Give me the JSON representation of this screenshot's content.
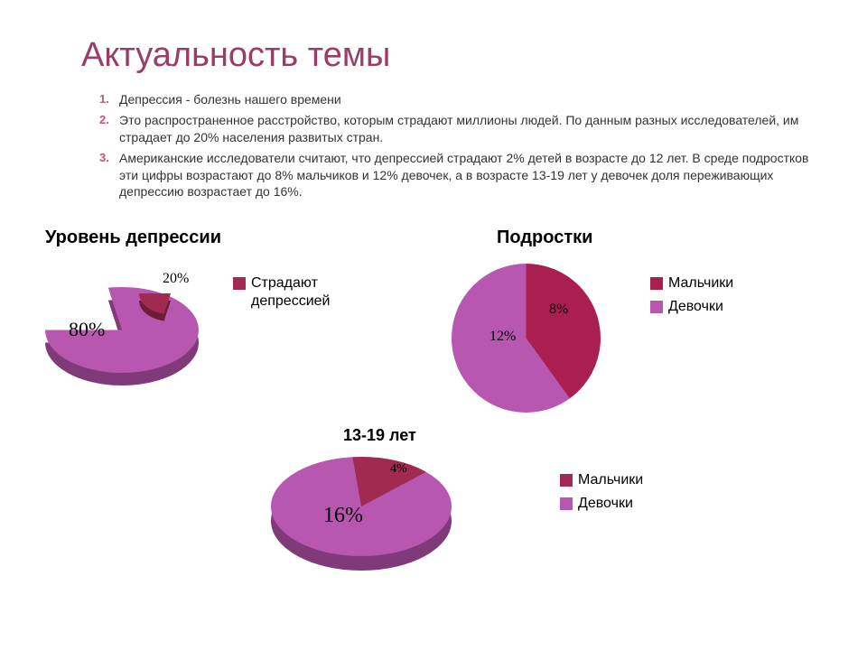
{
  "title": {
    "text": "Актуальность темы",
    "color": "#9a3c68",
    "fontsize": 38
  },
  "list": {
    "marker_color": "#c94f7c",
    "items": [
      "Депрессия - болезнь нашего времени",
      "Это распространенное расстройство, которым страдают миллионы людей. По данным разных исследователей, им страдает до 20% населения развитых стран.",
      "Американские исследователи считают, что депрессией страдают 2% детей  в возрасте до 12 лет. В среде подростков эти цифры возрастают до 8% мальчиков и 12% девочек, а в возрасте 13-19 лет у девочек доля переживающих депрессию возрастает до 16%."
    ]
  },
  "chart1": {
    "type": "pie",
    "title": "Уровень депрессии",
    "title_fontsize": 20,
    "style": "3d-exploded",
    "slices": [
      {
        "label": "80%",
        "value": 80,
        "color": "#b857b0",
        "dark": "#803a7a"
      },
      {
        "label": "20%",
        "value": 20,
        "color": "#a02a50",
        "dark": "#6e1d38",
        "exploded": true
      }
    ],
    "legend": [
      {
        "text": "Страдают депрессией",
        "color": "#a02a50"
      }
    ],
    "label_font": "Georgia",
    "label_fontsize": 18
  },
  "chart2": {
    "type": "pie",
    "title": "Подростки",
    "title_fontsize": 20,
    "slices": [
      {
        "label": "12%",
        "value": 60,
        "color": "#b857b0"
      },
      {
        "label": "8%",
        "value": 40,
        "color": "#ab1f50"
      }
    ],
    "legend": [
      {
        "text": "Мальчики",
        "color": "#ab1f50"
      },
      {
        "text": "Девочки",
        "color": "#b857b0"
      }
    ],
    "label_font": "Georgia",
    "label_fontsize": 16
  },
  "chart3": {
    "type": "pie",
    "title": "13-19 лет",
    "title_fontsize": 18,
    "style": "3d",
    "slices": [
      {
        "label": "16%",
        "value": 80,
        "color": "#b857b0",
        "dark": "#803a7a"
      },
      {
        "label": "4%",
        "value": 20,
        "color": "#a02a50",
        "dark": "#6e1d38"
      }
    ],
    "legend": [
      {
        "text": "Мальчики",
        "color": "#a02a50"
      },
      {
        "text": "Девочки",
        "color": "#b857b0"
      }
    ],
    "label_font": "Georgia",
    "label_fontsize": 18
  },
  "colors": {
    "background": "#ffffff",
    "text": "#333333"
  }
}
